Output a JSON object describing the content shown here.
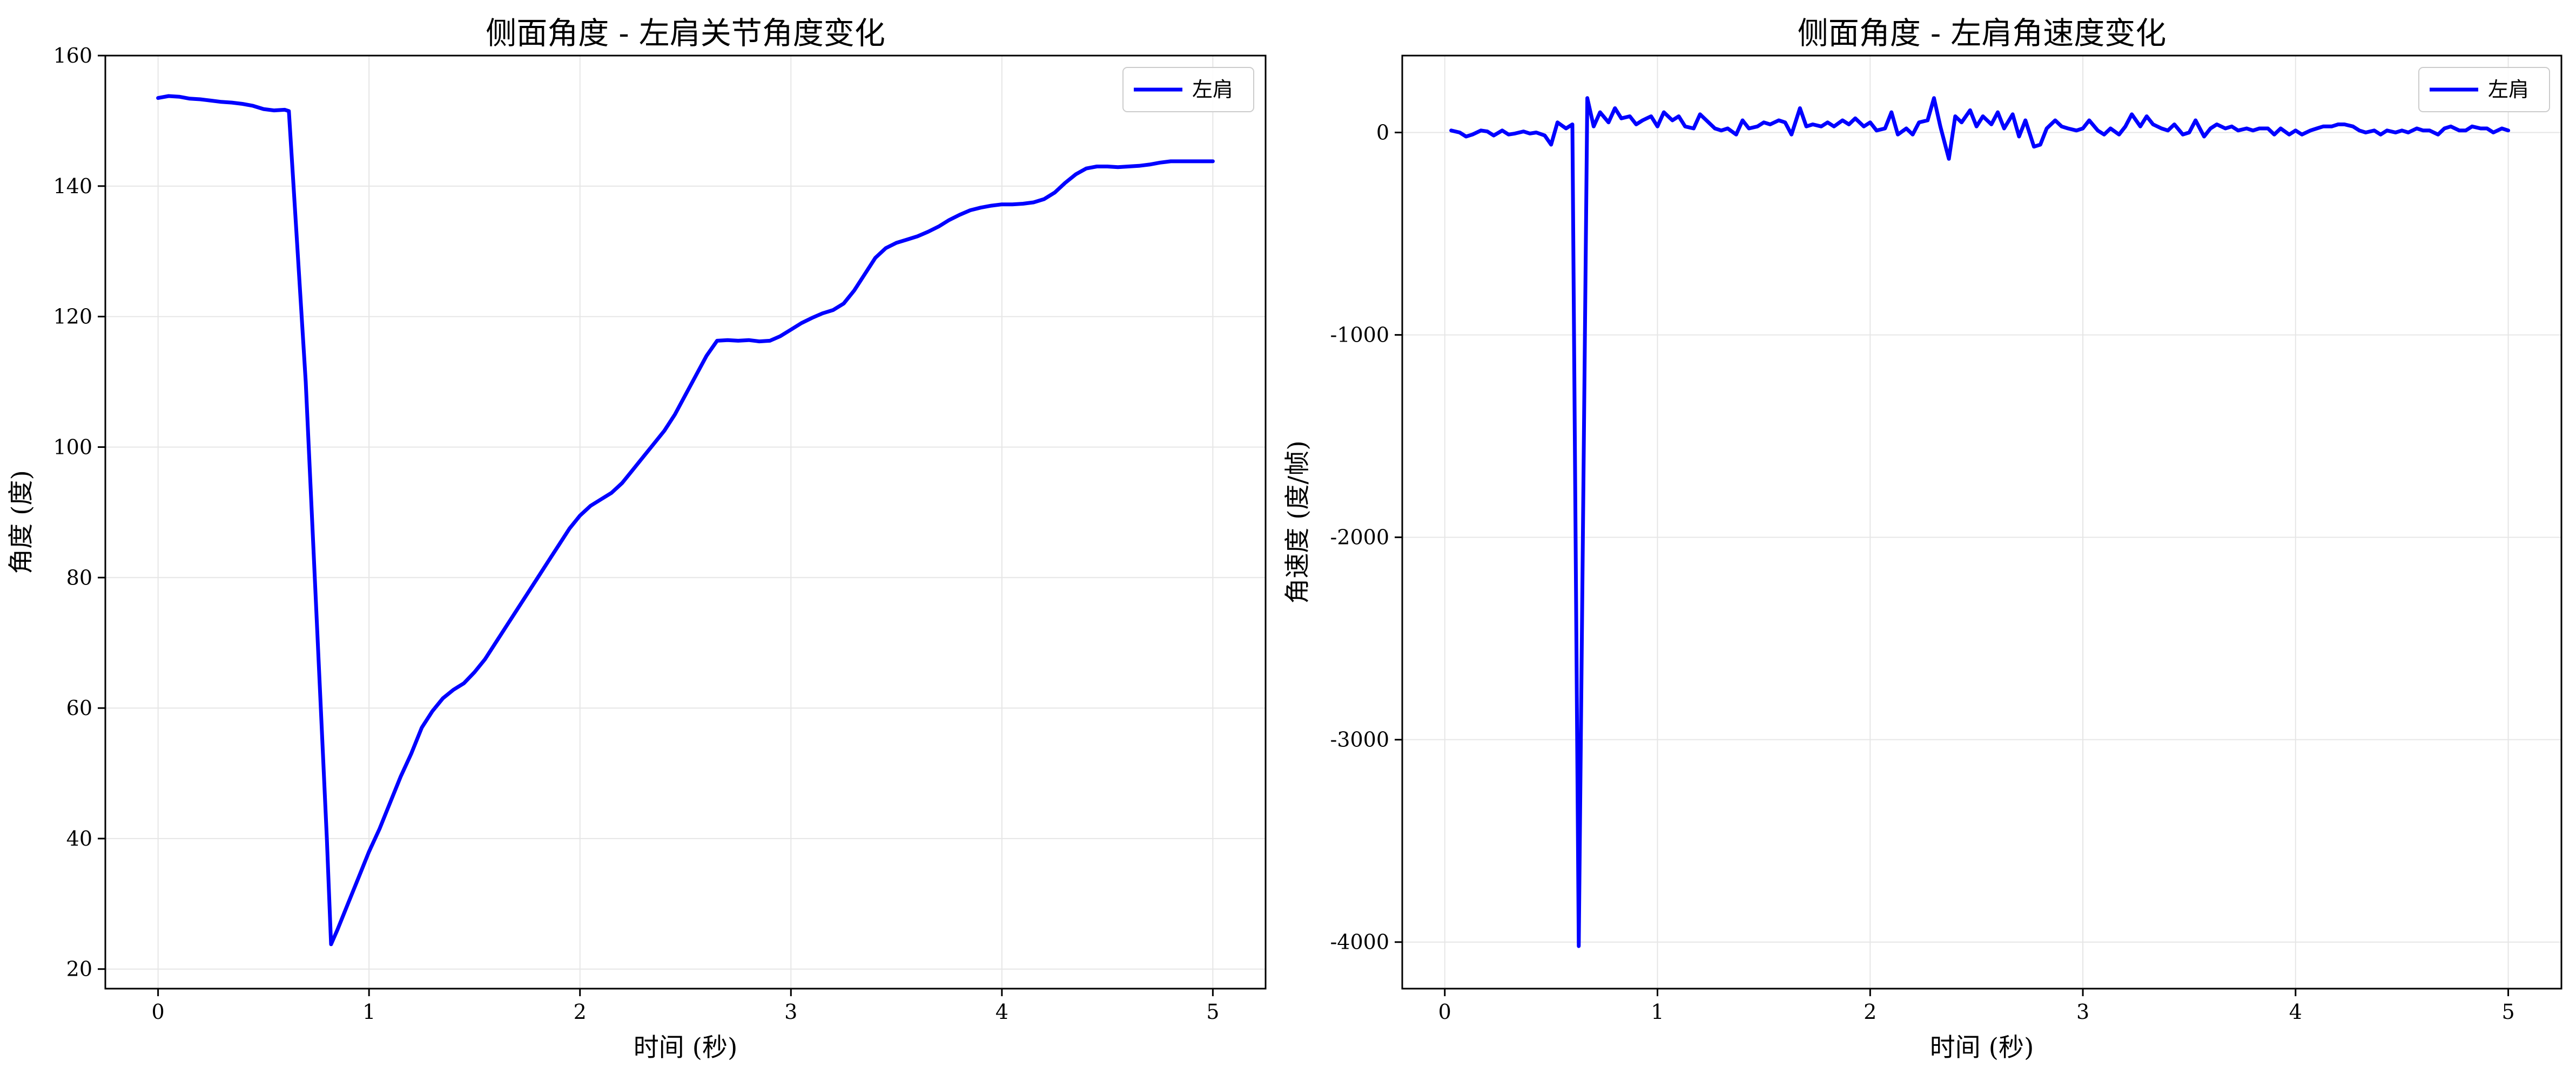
{
  "chart_data": [
    {
      "type": "line",
      "title": "侧面角度 - 左肩关节角度变化",
      "xlabel": "时间 (秒)",
      "ylabel": "角度 (度)",
      "xlim": [
        -0.25,
        5.25
      ],
      "ylim": [
        17,
        160
      ],
      "xticks": [
        0,
        1,
        2,
        3,
        4,
        5
      ],
      "yticks": [
        20,
        40,
        60,
        80,
        100,
        120,
        140,
        160
      ],
      "xtick_labels": [
        "0",
        "1",
        "2",
        "3",
        "4",
        "5"
      ],
      "ytick_labels": [
        "20",
        "40",
        "60",
        "80",
        "100",
        "120",
        "140",
        "160"
      ],
      "grid": true,
      "legend_position": "top-right",
      "series": [
        {
          "name": "左肩",
          "color": "#0000ff",
          "points": [
            [
              0.0,
              153.5
            ],
            [
              0.05,
              153.8
            ],
            [
              0.1,
              153.7
            ],
            [
              0.15,
              153.4
            ],
            [
              0.2,
              153.3
            ],
            [
              0.25,
              153.1
            ],
            [
              0.3,
              152.9
            ],
            [
              0.35,
              152.8
            ],
            [
              0.4,
              152.6
            ],
            [
              0.45,
              152.3
            ],
            [
              0.5,
              151.8
            ],
            [
              0.55,
              151.6
            ],
            [
              0.6,
              151.7
            ],
            [
              0.62,
              151.5
            ],
            [
              0.7,
              110.0
            ],
            [
              0.8,
              40.0
            ],
            [
              0.82,
              23.8
            ],
            [
              0.85,
              26.0
            ],
            [
              0.9,
              30.0
            ],
            [
              0.95,
              34.0
            ],
            [
              1.0,
              38.0
            ],
            [
              1.05,
              41.5
            ],
            [
              1.1,
              45.5
            ],
            [
              1.15,
              49.5
            ],
            [
              1.2,
              53.0
            ],
            [
              1.25,
              57.0
            ],
            [
              1.3,
              59.5
            ],
            [
              1.35,
              61.5
            ],
            [
              1.4,
              62.8
            ],
            [
              1.45,
              63.8
            ],
            [
              1.5,
              65.5
            ],
            [
              1.55,
              67.5
            ],
            [
              1.6,
              70.0
            ],
            [
              1.65,
              72.5
            ],
            [
              1.7,
              75.0
            ],
            [
              1.75,
              77.5
            ],
            [
              1.8,
              80.0
            ],
            [
              1.85,
              82.5
            ],
            [
              1.9,
              85.0
            ],
            [
              1.95,
              87.5
            ],
            [
              2.0,
              89.5
            ],
            [
              2.05,
              91.0
            ],
            [
              2.1,
              92.0
            ],
            [
              2.15,
              93.0
            ],
            [
              2.2,
              94.5
            ],
            [
              2.25,
              96.5
            ],
            [
              2.3,
              98.5
            ],
            [
              2.35,
              100.5
            ],
            [
              2.4,
              102.5
            ],
            [
              2.45,
              105.0
            ],
            [
              2.5,
              108.0
            ],
            [
              2.55,
              111.0
            ],
            [
              2.6,
              114.0
            ],
            [
              2.65,
              116.3
            ],
            [
              2.7,
              116.4
            ],
            [
              2.75,
              116.3
            ],
            [
              2.8,
              116.4
            ],
            [
              2.85,
              116.2
            ],
            [
              2.9,
              116.3
            ],
            [
              2.95,
              117.0
            ],
            [
              3.0,
              118.0
            ],
            [
              3.05,
              119.0
            ],
            [
              3.1,
              119.8
            ],
            [
              3.15,
              120.5
            ],
            [
              3.2,
              121.0
            ],
            [
              3.25,
              122.0
            ],
            [
              3.3,
              124.0
            ],
            [
              3.35,
              126.5
            ],
            [
              3.4,
              129.0
            ],
            [
              3.45,
              130.5
            ],
            [
              3.5,
              131.3
            ],
            [
              3.55,
              131.8
            ],
            [
              3.6,
              132.3
            ],
            [
              3.65,
              133.0
            ],
            [
              3.7,
              133.8
            ],
            [
              3.75,
              134.8
            ],
            [
              3.8,
              135.6
            ],
            [
              3.85,
              136.3
            ],
            [
              3.9,
              136.7
            ],
            [
              3.95,
              137.0
            ],
            [
              4.0,
              137.2
            ],
            [
              4.05,
              137.2
            ],
            [
              4.1,
              137.3
            ],
            [
              4.15,
              137.5
            ],
            [
              4.2,
              138.0
            ],
            [
              4.25,
              139.0
            ],
            [
              4.3,
              140.5
            ],
            [
              4.35,
              141.8
            ],
            [
              4.4,
              142.7
            ],
            [
              4.45,
              143.0
            ],
            [
              4.5,
              143.0
            ],
            [
              4.55,
              142.9
            ],
            [
              4.6,
              143.0
            ],
            [
              4.65,
              143.1
            ],
            [
              4.7,
              143.3
            ],
            [
              4.75,
              143.6
            ],
            [
              4.8,
              143.8
            ],
            [
              5.0,
              143.8
            ]
          ]
        }
      ]
    },
    {
      "type": "line",
      "title": "侧面角度 - 左肩角速度变化",
      "xlabel": "时间 (秒)",
      "ylabel": "角速度 (度/帧)",
      "xlim": [
        -0.2,
        5.25
      ],
      "ylim": [
        -4230,
        380
      ],
      "xticks": [
        0,
        1,
        2,
        3,
        4,
        5
      ],
      "yticks": [
        -4000,
        -3000,
        -2000,
        -1000,
        0
      ],
      "xtick_labels": [
        "0",
        "1",
        "2",
        "3",
        "4",
        "5"
      ],
      "ytick_labels": [
        "-4000",
        "-3000",
        "-2000",
        "-1000",
        "0"
      ],
      "grid": true,
      "legend_position": "top-right",
      "series": [
        {
          "name": "左肩",
          "color": "#0000ff",
          "points": [
            [
              0.03,
              10
            ],
            [
              0.07,
              0
            ],
            [
              0.1,
              -20
            ],
            [
              0.13,
              -10
            ],
            [
              0.17,
              10
            ],
            [
              0.2,
              5
            ],
            [
              0.23,
              -15
            ],
            [
              0.27,
              10
            ],
            [
              0.3,
              -10
            ],
            [
              0.33,
              -5
            ],
            [
              0.37,
              5
            ],
            [
              0.4,
              -5
            ],
            [
              0.43,
              0
            ],
            [
              0.47,
              -15
            ],
            [
              0.5,
              -60
            ],
            [
              0.53,
              50
            ],
            [
              0.57,
              20
            ],
            [
              0.6,
              40
            ],
            [
              0.63,
              -4020
            ],
            [
              0.67,
              170
            ],
            [
              0.7,
              30
            ],
            [
              0.73,
              100
            ],
            [
              0.77,
              50
            ],
            [
              0.8,
              120
            ],
            [
              0.83,
              70
            ],
            [
              0.87,
              80
            ],
            [
              0.9,
              40
            ],
            [
              0.93,
              60
            ],
            [
              0.97,
              80
            ],
            [
              1.0,
              30
            ],
            [
              1.03,
              100
            ],
            [
              1.07,
              60
            ],
            [
              1.1,
              80
            ],
            [
              1.13,
              30
            ],
            [
              1.17,
              20
            ],
            [
              1.2,
              90
            ],
            [
              1.23,
              60
            ],
            [
              1.27,
              20
            ],
            [
              1.3,
              10
            ],
            [
              1.33,
              20
            ],
            [
              1.37,
              -10
            ],
            [
              1.4,
              60
            ],
            [
              1.43,
              20
            ],
            [
              1.47,
              30
            ],
            [
              1.5,
              50
            ],
            [
              1.53,
              40
            ],
            [
              1.57,
              60
            ],
            [
              1.6,
              50
            ],
            [
              1.63,
              -10
            ],
            [
              1.67,
              120
            ],
            [
              1.7,
              30
            ],
            [
              1.73,
              40
            ],
            [
              1.77,
              30
            ],
            [
              1.8,
              50
            ],
            [
              1.83,
              30
            ],
            [
              1.87,
              60
            ],
            [
              1.9,
              40
            ],
            [
              1.93,
              70
            ],
            [
              1.97,
              30
            ],
            [
              2.0,
              50
            ],
            [
              2.03,
              10
            ],
            [
              2.07,
              20
            ],
            [
              2.1,
              100
            ],
            [
              2.13,
              -10
            ],
            [
              2.17,
              20
            ],
            [
              2.2,
              -10
            ],
            [
              2.23,
              50
            ],
            [
              2.27,
              60
            ],
            [
              2.3,
              170
            ],
            [
              2.33,
              30
            ],
            [
              2.37,
              -130
            ],
            [
              2.4,
              80
            ],
            [
              2.43,
              50
            ],
            [
              2.47,
              110
            ],
            [
              2.5,
              30
            ],
            [
              2.53,
              80
            ],
            [
              2.57,
              40
            ],
            [
              2.6,
              100
            ],
            [
              2.63,
              20
            ],
            [
              2.67,
              90
            ],
            [
              2.7,
              -20
            ],
            [
              2.73,
              60
            ],
            [
              2.77,
              -70
            ],
            [
              2.8,
              -60
            ],
            [
              2.83,
              20
            ],
            [
              2.87,
              60
            ],
            [
              2.9,
              30
            ],
            [
              2.93,
              20
            ],
            [
              2.97,
              10
            ],
            [
              3.0,
              20
            ],
            [
              3.03,
              60
            ],
            [
              3.07,
              10
            ],
            [
              3.1,
              -10
            ],
            [
              3.13,
              20
            ],
            [
              3.17,
              -10
            ],
            [
              3.2,
              30
            ],
            [
              3.23,
              90
            ],
            [
              3.27,
              30
            ],
            [
              3.3,
              80
            ],
            [
              3.33,
              40
            ],
            [
              3.37,
              20
            ],
            [
              3.4,
              10
            ],
            [
              3.43,
              40
            ],
            [
              3.47,
              -10
            ],
            [
              3.5,
              0
            ],
            [
              3.53,
              60
            ],
            [
              3.57,
              -20
            ],
            [
              3.6,
              20
            ],
            [
              3.63,
              40
            ],
            [
              3.67,
              20
            ],
            [
              3.7,
              30
            ],
            [
              3.73,
              10
            ],
            [
              3.77,
              20
            ],
            [
              3.8,
              10
            ],
            [
              3.83,
              20
            ],
            [
              3.87,
              20
            ],
            [
              3.9,
              -10
            ],
            [
              3.93,
              20
            ],
            [
              3.97,
              -10
            ],
            [
              4.0,
              10
            ],
            [
              4.03,
              -10
            ],
            [
              4.07,
              10
            ],
            [
              4.1,
              20
            ],
            [
              4.13,
              30
            ],
            [
              4.17,
              30
            ],
            [
              4.2,
              40
            ],
            [
              4.23,
              40
            ],
            [
              4.27,
              30
            ],
            [
              4.3,
              10
            ],
            [
              4.33,
              0
            ],
            [
              4.37,
              10
            ],
            [
              4.4,
              -10
            ],
            [
              4.43,
              10
            ],
            [
              4.47,
              0
            ],
            [
              4.5,
              10
            ],
            [
              4.53,
              0
            ],
            [
              4.57,
              20
            ],
            [
              4.6,
              10
            ],
            [
              4.63,
              10
            ],
            [
              4.67,
              -10
            ],
            [
              4.7,
              20
            ],
            [
              4.73,
              30
            ],
            [
              4.77,
              10
            ],
            [
              4.8,
              10
            ],
            [
              4.83,
              30
            ],
            [
              4.87,
              20
            ],
            [
              4.9,
              20
            ],
            [
              4.93,
              0
            ],
            [
              4.97,
              20
            ],
            [
              5.0,
              10
            ]
          ]
        }
      ]
    }
  ]
}
